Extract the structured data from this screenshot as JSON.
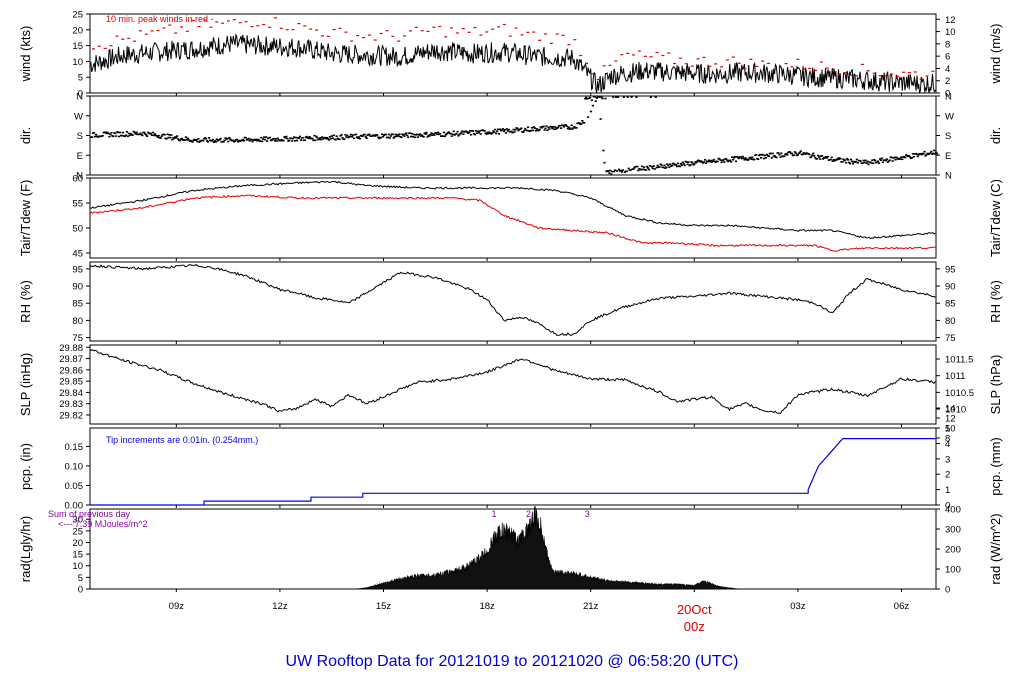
{
  "figure": {
    "title": "UW Rooftop Data for 20121019  to  20121020 @ 06:58:20  (UTC)",
    "colors": {
      "title": "#0000cc",
      "date_marker": "#dd0000",
      "peak": "#dd0000",
      "dewpoint": "#dd0000",
      "precip": "#0000ee",
      "rad_note": "#8800aa",
      "trace": "#000000"
    }
  },
  "chart_data": [
    {
      "id": "wind",
      "type": "line",
      "ylabel": "wind (kts)",
      "ylabel_right": "wind (m/s)",
      "ylim": [
        0,
        25
      ],
      "yticks": [
        0,
        5,
        10,
        15,
        20,
        25
      ],
      "right_ticks": [
        0,
        2,
        4,
        6,
        8,
        10,
        12
      ],
      "right_factor": 0.5144,
      "annotation": "10 min. peak winds in red -",
      "series": [
        {
          "x": [
            6.5,
            7.5,
            8.5,
            9.5,
            10.5,
            11.5,
            12.5,
            13.5,
            14.5,
            15.5,
            16.5,
            17.5,
            18.5,
            19.5,
            20.5,
            20.9,
            21.2,
            21.6,
            22.5,
            23.5,
            24.5,
            25.5,
            26.5,
            27.5,
            28.5,
            29.5,
            30.5,
            31
          ],
          "y": [
            9,
            12,
            13,
            14,
            15.5,
            15,
            14.5,
            12.5,
            12,
            11.5,
            13.5,
            12.5,
            13,
            11.5,
            11,
            6,
            2,
            5.5,
            7,
            6.5,
            6,
            6.5,
            6,
            5,
            4.5,
            3.5,
            3,
            3
          ]
        },
        {
          "name": "10 min. peak winds in red",
          "style": "dashes",
          "x": [
            6.5,
            7.5,
            8.5,
            9.5,
            10.5,
            11.5,
            12.5,
            13.5,
            14.5,
            15.5,
            16.5,
            17.5,
            18.5,
            19.5,
            20.5,
            21.2,
            22,
            23,
            24,
            25,
            26,
            27,
            28,
            29,
            30,
            31
          ],
          "y": [
            15,
            17,
            19,
            21,
            22,
            23,
            21,
            19,
            18,
            18,
            20,
            19,
            20,
            18,
            17,
            5,
            12,
            11,
            10,
            10,
            9,
            9,
            8,
            7,
            6,
            6
          ]
        }
      ]
    },
    {
      "id": "dir",
      "type": "scatter",
      "ylabel": "dir.",
      "ylim": [
        0,
        360
      ],
      "ytick_values": [
        0,
        90,
        180,
        270,
        360
      ],
      "ytick_labels": [
        "N",
        "E",
        "S",
        "W",
        "N"
      ],
      "right_ticks": [
        0,
        90,
        180,
        270,
        360
      ],
      "right_labels": [
        "N",
        "E",
        "S",
        "W",
        "N"
      ],
      "series": [
        {
          "x": [
            6.5,
            8,
            9.5,
            11,
            12.5,
            14,
            15.5,
            17,
            18.5,
            19.5,
            20.5,
            20.8,
            21,
            21.2,
            21.4,
            22,
            23,
            24,
            25,
            26,
            27,
            28,
            29,
            30,
            31
          ],
          "y": [
            182,
            190,
            158,
            160,
            166,
            174,
            180,
            188,
            200,
            212,
            220,
            250,
            300,
            350,
            10,
            25,
            40,
            55,
            70,
            85,
            100,
            70,
            55,
            80,
            105
          ]
        }
      ]
    },
    {
      "id": "temp",
      "type": "line",
      "ylabel": "Tair/Tdew (F)",
      "ylabel_right": "Tair/Tdew (C)",
      "ylim": [
        44,
        60
      ],
      "yticks": [
        45,
        50,
        55,
        60
      ],
      "right_ticks": [
        8,
        10,
        12,
        14
      ],
      "series": [
        {
          "name": "Tair",
          "x": [
            6.5,
            8,
            9.5,
            11,
            12.5,
            13.5,
            14.5,
            16,
            17.5,
            19,
            20,
            21,
            22,
            23,
            24,
            25,
            26,
            27,
            28,
            29,
            30,
            31
          ],
          "y": [
            54,
            55.5,
            57.5,
            58.5,
            59,
            59.3,
            58.5,
            58,
            58,
            58,
            57.5,
            56,
            52.5,
            51,
            50.5,
            50.5,
            50,
            49.5,
            49.5,
            48,
            48.5,
            49
          ]
        },
        {
          "name": "Tdew",
          "color": "#dd0000",
          "x": [
            6.5,
            8,
            9.5,
            11,
            12.5,
            14,
            15.5,
            17,
            17.8,
            18.5,
            19.5,
            20.5,
            21.5,
            22.5,
            23.5,
            24.5,
            25.5,
            26.5,
            27.5,
            28,
            29,
            30,
            31
          ],
          "y": [
            53,
            54,
            56,
            56.5,
            56,
            56,
            56,
            56,
            55.5,
            52.5,
            50,
            49.5,
            49,
            47,
            47,
            46.5,
            46.5,
            46.5,
            46.5,
            45.5,
            46,
            46,
            46
          ]
        }
      ]
    },
    {
      "id": "rh",
      "type": "line",
      "ylabel": "RH (%)",
      "ylabel_right": "RH (%)",
      "ylim": [
        74,
        97
      ],
      "yticks": [
        75,
        80,
        85,
        90,
        95
      ],
      "right_ticks": [
        75,
        80,
        85,
        90,
        95
      ],
      "series": [
        {
          "x": [
            6.5,
            8,
            9.5,
            10,
            11,
            12,
            12.5,
            13,
            13.5,
            14,
            14.5,
            15.5,
            16.5,
            17.5,
            18,
            18.5,
            19,
            19.5,
            20,
            20.5,
            21,
            22,
            23,
            24,
            25,
            26,
            27,
            27.5,
            28,
            28.5,
            29,
            30,
            31
          ],
          "y": [
            96,
            95,
            96,
            95.5,
            93,
            89,
            88,
            86.5,
            86,
            85,
            88,
            94,
            92.5,
            89,
            86,
            80,
            81,
            79,
            76,
            76,
            80,
            84,
            86.5,
            87,
            88,
            87,
            86,
            85,
            82,
            88,
            92,
            89,
            87
          ]
        }
      ]
    },
    {
      "id": "slp",
      "type": "line",
      "ylabel": "SLP (inHg)",
      "ylabel_right": "SLP (hPa)",
      "ylim": [
        29.812,
        29.882
      ],
      "yticks": [
        29.82,
        29.83,
        29.84,
        29.85,
        29.86,
        29.87,
        29.88
      ],
      "ytick_labels": [
        "29.82",
        "29.83",
        "29.84",
        "29.85",
        "29.86",
        "29.87",
        "29.88"
      ],
      "right_ticks": [
        1010,
        1010.5,
        1011,
        1011.5
      ],
      "right_factor": 33.8639,
      "series": [
        {
          "x": [
            6.5,
            7.5,
            8.5,
            9.5,
            10.5,
            11.5,
            12,
            12.5,
            13,
            13.5,
            14,
            14.5,
            15,
            15.5,
            16,
            17,
            18,
            18.5,
            19,
            19.5,
            20,
            21,
            22,
            23,
            23.5,
            24,
            24.5,
            25,
            25.5,
            26,
            26.5,
            27,
            28,
            29,
            30,
            31
          ],
          "y": [
            29.878,
            29.868,
            29.86,
            29.848,
            29.838,
            29.83,
            29.823,
            29.826,
            29.834,
            29.828,
            29.838,
            29.83,
            29.836,
            29.843,
            29.849,
            29.852,
            29.858,
            29.864,
            29.87,
            29.865,
            29.859,
            29.852,
            29.851,
            29.84,
            29.832,
            29.834,
            29.836,
            29.825,
            29.83,
            29.824,
            29.822,
            29.838,
            29.843,
            29.837,
            29.852,
            29.849
          ]
        }
      ]
    },
    {
      "id": "pcp",
      "type": "line",
      "step": true,
      "ylabel": "pcp. (in)",
      "ylabel_right": "pcp. (mm)",
      "ylim": [
        0,
        0.197
      ],
      "yticks": [
        0,
        0.05,
        0.1,
        0.15
      ],
      "ytick_labels": [
        "0.00",
        "0.05",
        "0.10",
        "0.15"
      ],
      "right_ticks": [
        0,
        1,
        2,
        3,
        4,
        5
      ],
      "right_factor": 25.4,
      "annotation": "Tip increments are 0.01in. (0.254mm.)",
      "series": [
        {
          "color": "#0000ee",
          "x": [
            6.5,
            9.8,
            9.8,
            12.9,
            12.9,
            14.4,
            14.4,
            27.3,
            27.3,
            27.4,
            27.5,
            27.6,
            27.7,
            27.8,
            27.9,
            28.0,
            28.1,
            28.2,
            28.3,
            28.4,
            31
          ],
          "y": [
            0,
            0,
            0.01,
            0.01,
            0.02,
            0.02,
            0.03,
            0.03,
            0.04,
            0.06,
            0.08,
            0.1,
            0.11,
            0.12,
            0.13,
            0.14,
            0.15,
            0.16,
            0.17,
            0.17,
            0.17
          ]
        }
      ]
    },
    {
      "id": "rad",
      "type": "area",
      "ylabel": "rad(Lgly/hr)",
      "ylabel_right": "rad (W/m^2)",
      "ylim": [
        0,
        34.4
      ],
      "yticks": [
        0,
        5,
        10,
        15,
        20,
        25,
        30
      ],
      "right_ticks": [
        0,
        100,
        200,
        300,
        400
      ],
      "right_factor": 11.63,
      "note_lines": [
        "Sum of previous day",
        "<--- 7.39 MJoules/m^2"
      ],
      "markers": [
        {
          "label": "1",
          "x": 18.2
        },
        {
          "label": "2",
          "x": 19.2
        },
        {
          "label": "3",
          "x": 20.9
        }
      ],
      "series": [
        {
          "x": [
            14.2,
            14.5,
            15,
            15.5,
            16,
            16.5,
            17,
            17.5,
            18,
            18.3,
            18.6,
            18.9,
            19.1,
            19.4,
            19.6,
            19.8,
            20,
            20.3,
            20.7,
            21,
            21.5,
            22,
            22.5,
            23,
            23.5,
            24,
            24.3,
            24.6,
            25,
            25.3
          ],
          "y": [
            0,
            0.5,
            2.5,
            4.5,
            5.5,
            6,
            7.5,
            10,
            16,
            24,
            25,
            20,
            24,
            31,
            25,
            11,
            7,
            7,
            6,
            5,
            3.5,
            3,
            2.5,
            2,
            2,
            1.5,
            3.5,
            1.5,
            0.5,
            0
          ]
        }
      ]
    }
  ],
  "time_axis": {
    "xlim": [
      6.5,
      31
    ],
    "ticks": [
      9,
      12,
      15,
      18,
      21,
      24,
      27,
      30
    ],
    "labels": [
      "09z",
      "12z",
      "15z",
      "18z",
      "21z",
      "00z",
      "03z",
      "06z"
    ],
    "date_label": "20Oct",
    "date_sublabel": "00z"
  }
}
